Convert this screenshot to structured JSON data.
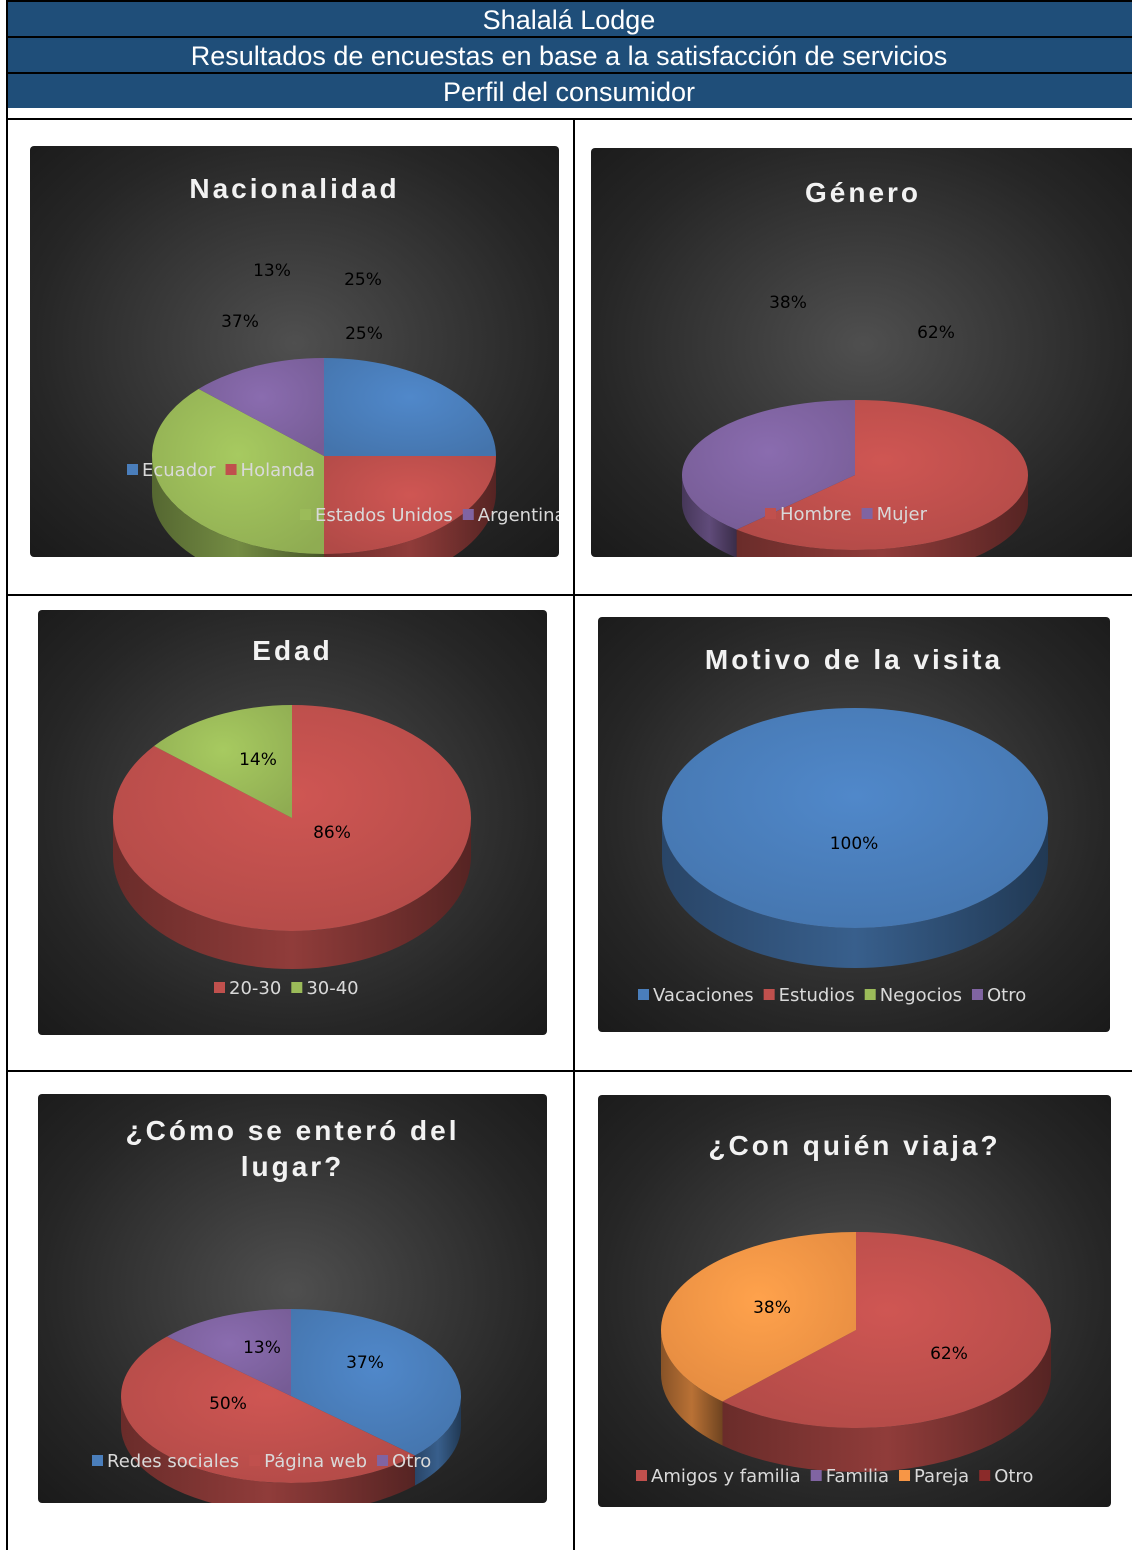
{
  "header": {
    "title": "Shalalá Lodge",
    "subtitle": "Resultados de encuestas en base a la satisfacción de servicios",
    "section": "Perfil del consumidor"
  },
  "colors": {
    "blue": "#4a7ebb",
    "red": "#c0504d",
    "green": "#9bbb59",
    "purple": "#8064a2",
    "orange": "#f79646",
    "darkred": "#8b2b2a"
  },
  "chart_data": [
    {
      "type": "pie",
      "title": [
        "Nacionalidad"
      ],
      "slices": [
        {
          "name": "Ecuador",
          "value": 25,
          "label": "25%",
          "color": "blue"
        },
        {
          "name": "Holanda",
          "value": 25,
          "label": "25%",
          "color": "red"
        },
        {
          "name": "Estados Unidos",
          "value": 37,
          "label": "37%",
          "color": "green"
        },
        {
          "name": "Argentina",
          "value": 13,
          "label": "13%",
          "color": "purple"
        }
      ],
      "legend": [
        [
          {
            "name": "Ecuador",
            "color": "blue"
          },
          {
            "name": "Holanda",
            "color": "red"
          }
        ],
        [
          {
            "name": "Estados Unidos",
            "color": "green"
          },
          {
            "name": "Argentina",
            "color": "purple"
          }
        ]
      ]
    },
    {
      "type": "pie",
      "title": [
        "Género"
      ],
      "slices": [
        {
          "name": "Hombre",
          "value": 62,
          "label": "62%",
          "color": "red"
        },
        {
          "name": "Mujer",
          "value": 38,
          "label": "38%",
          "color": "purple"
        }
      ],
      "legend": [
        [
          {
            "name": "Hombre",
            "color": "red"
          },
          {
            "name": "Mujer",
            "color": "purple"
          }
        ]
      ]
    },
    {
      "type": "pie",
      "title": [
        "Edad"
      ],
      "slices": [
        {
          "name": "20-30",
          "value": 86,
          "label": "86%",
          "color": "red"
        },
        {
          "name": "30-40",
          "value": 14,
          "label": "14%",
          "color": "green"
        }
      ],
      "legend": [
        [
          {
            "name": "20-30",
            "color": "red"
          },
          {
            "name": "30-40",
            "color": "green"
          }
        ]
      ]
    },
    {
      "type": "pie",
      "title": [
        "Motivo de la visita"
      ],
      "slices": [
        {
          "name": "Vacaciones",
          "value": 100,
          "label": "100%",
          "color": "blue"
        }
      ],
      "legend": [
        [
          {
            "name": "Vacaciones",
            "color": "blue"
          },
          {
            "name": "Estudios",
            "color": "red"
          },
          {
            "name": "Negocios",
            "color": "green"
          },
          {
            "name": "Otro",
            "color": "purple"
          }
        ]
      ]
    },
    {
      "type": "pie",
      "title": [
        "¿Cómo se enteró del",
        "lugar?"
      ],
      "slices": [
        {
          "name": "Redes sociales",
          "value": 37,
          "label": "37%",
          "color": "blue"
        },
        {
          "name": "Página web",
          "value": 50,
          "label": "50%",
          "color": "red"
        },
        {
          "name": "Otro",
          "value": 13,
          "label": "13%",
          "color": "purple"
        }
      ],
      "legend": [
        [
          {
            "name": "Redes sociales",
            "color": "blue"
          },
          {
            "name": "Página web",
            "color": "red"
          },
          {
            "name": "Otro",
            "color": "purple"
          }
        ]
      ]
    },
    {
      "type": "pie",
      "title": [
        "¿Con quién viaja?"
      ],
      "slices": [
        {
          "name": "Amigos y familia",
          "value": 62,
          "label": "62%",
          "color": "red"
        },
        {
          "name": "Pareja",
          "value": 38,
          "label": "38%",
          "color": "orange"
        }
      ],
      "legend": [
        [
          {
            "name": "Amigos y familia",
            "color": "red"
          },
          {
            "name": "Familia",
            "color": "purple"
          },
          {
            "name": "Pareja",
            "color": "orange"
          },
          {
            "name": "Otro",
            "color": "darkred"
          }
        ]
      ]
    }
  ]
}
